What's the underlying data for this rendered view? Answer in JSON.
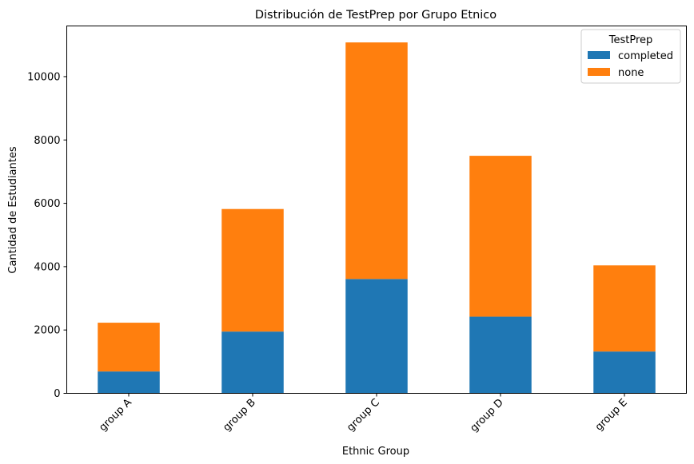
{
  "chart_data": {
    "type": "bar",
    "stacked": true,
    "title": "Distribución de TestPrep por Grupo Etnico",
    "xlabel": "Ethnic Group",
    "ylabel": "Cantidad de Estudiantes",
    "categories": [
      "group A",
      "group B",
      "group C",
      "group D",
      "group E"
    ],
    "series": [
      {
        "name": "completed",
        "color": "#1f77b4",
        "values": [
          690,
          1950,
          3610,
          2420,
          1320
        ]
      },
      {
        "name": "none",
        "color": "#ff7f0e",
        "values": [
          1540,
          3870,
          7470,
          5080,
          2720
        ]
      }
    ],
    "ylim": [
      0,
      11600
    ],
    "yticks": [
      0,
      2000,
      4000,
      6000,
      8000,
      10000
    ],
    "legend": {
      "title": "TestPrep",
      "position": "top-right"
    },
    "grid": false
  }
}
